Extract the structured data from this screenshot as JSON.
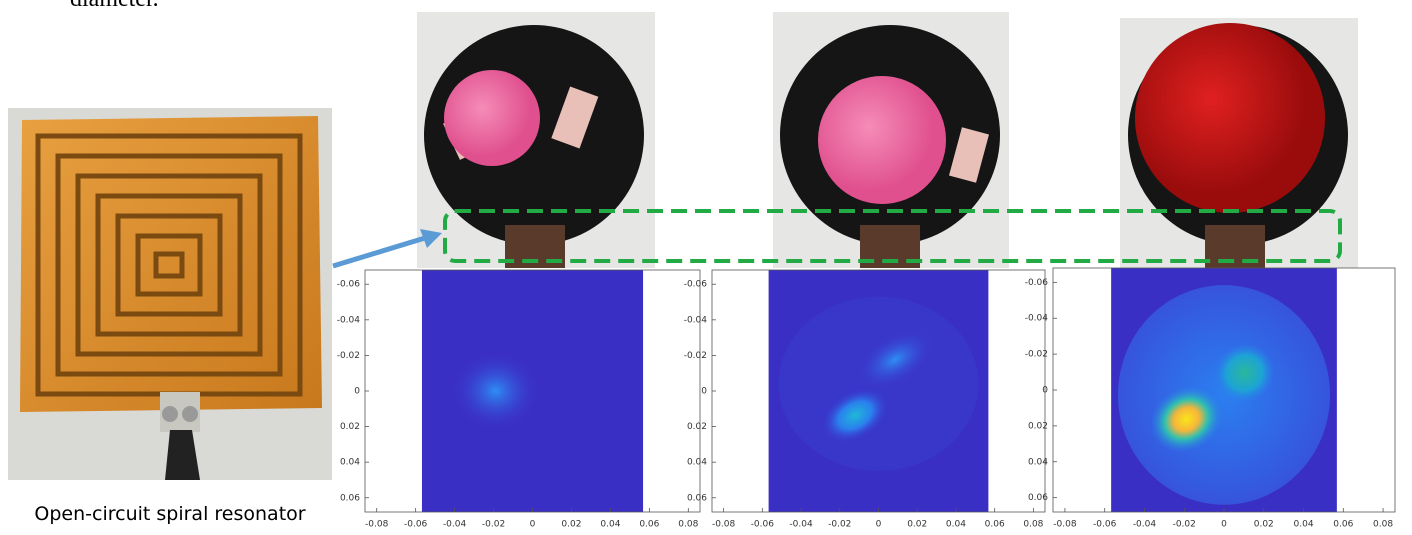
{
  "header": {
    "text": "diameter."
  },
  "resonator": {
    "caption": "Open-circuit spiral resonator"
  },
  "panels": [
    {
      "xlim": [
        -0.086,
        0.086
      ],
      "ylim": [
        -0.068,
        0.068
      ],
      "y_reversed": true,
      "xticks": [
        -0.08,
        -0.06,
        -0.04,
        -0.02,
        0,
        0.02,
        0.04,
        0.06,
        0.08
      ],
      "yticks": [
        -0.06,
        -0.04,
        -0.02,
        0,
        0.02,
        0.04,
        0.06
      ]
    },
    {
      "xlim": [
        -0.086,
        0.086
      ],
      "ylim": [
        -0.068,
        0.068
      ],
      "y_reversed": true,
      "xticks": [
        -0.08,
        -0.06,
        -0.04,
        -0.02,
        0,
        0.02,
        0.04,
        0.06,
        0.08
      ],
      "yticks": [
        -0.06,
        -0.04,
        -0.02,
        0,
        0.02,
        0.04,
        0.06
      ]
    },
    {
      "xlim": [
        -0.086,
        0.086
      ],
      "ylim": [
        -0.068,
        0.068
      ],
      "y_reversed": true,
      "xticks": [
        -0.08,
        -0.06,
        -0.04,
        -0.02,
        0,
        0.02,
        0.04,
        0.06,
        0.08
      ],
      "yticks": [
        -0.06,
        -0.04,
        -0.02,
        0,
        0.02,
        0.04,
        0.06
      ]
    }
  ]
}
